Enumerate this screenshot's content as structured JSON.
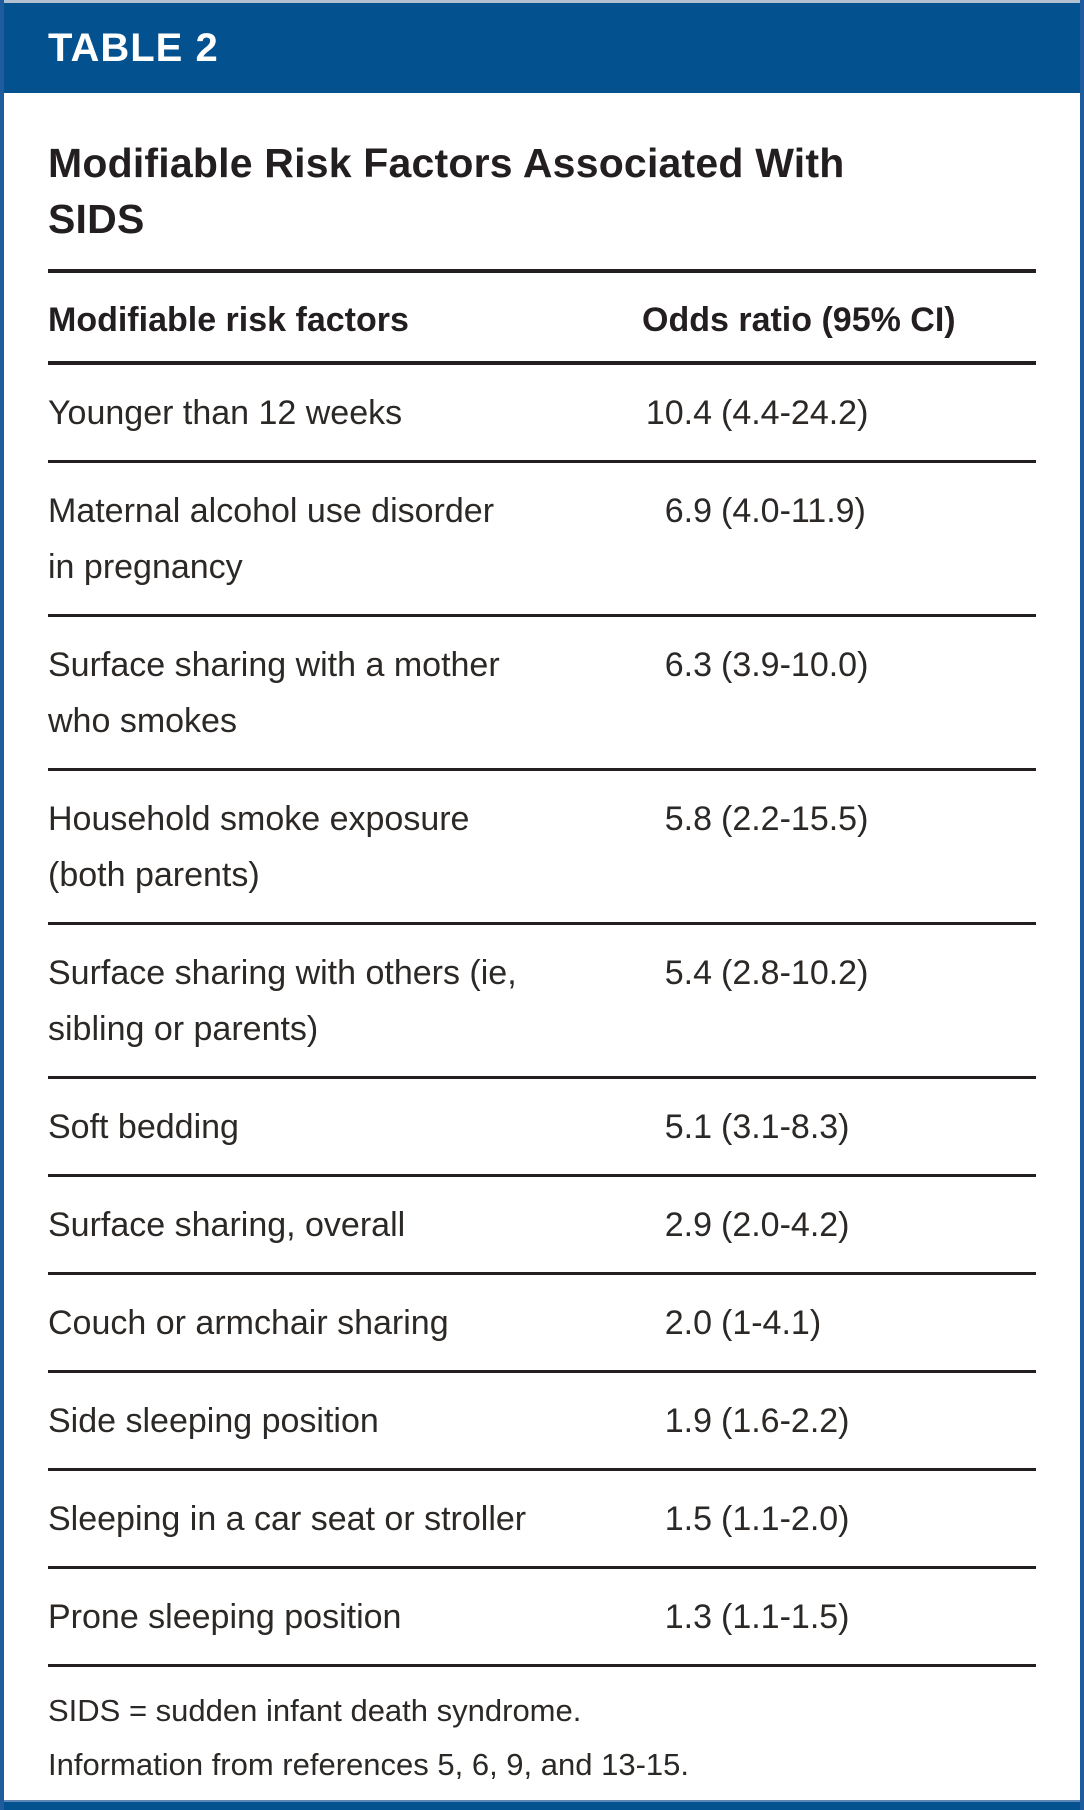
{
  "band": {
    "label": "TABLE 2"
  },
  "title": "Modifiable Risk Factors Associated With\nSIDS",
  "columns": {
    "factor": "Modifiable risk factors",
    "odds": "Odds ratio (95% CI)"
  },
  "rows": [
    {
      "factor": "Younger than 12 weeks",
      "odds": "10.4",
      "ci": "(4.4-24.2)"
    },
    {
      "factor": "Maternal alcohol use disorder\nin pregnancy",
      "odds": "6.9",
      "ci": "(4.0-11.9)"
    },
    {
      "factor": "Surface sharing with a mother\nwho smokes",
      "odds": "6.3",
      "ci": "(3.9-10.0)"
    },
    {
      "factor": "Household smoke exposure\n(both parents)",
      "odds": "5.8",
      "ci": "(2.2-15.5)"
    },
    {
      "factor": "Surface sharing with others (ie,\nsibling or parents)",
      "odds": "5.4",
      "ci": "(2.8-10.2)"
    },
    {
      "factor": "Soft bedding",
      "odds": "5.1",
      "ci": "(3.1-8.3)"
    },
    {
      "factor": "Surface sharing, overall",
      "odds": "2.9",
      "ci": "(2.0-4.2)"
    },
    {
      "factor": "Couch or armchair sharing",
      "odds": "2.0",
      "ci": "(1-4.1)"
    },
    {
      "factor": "Side sleeping position",
      "odds": "1.9",
      "ci": "(1.6-2.2)"
    },
    {
      "factor": "Sleeping in a car seat or stroller",
      "odds": "1.5",
      "ci": "(1.1-2.0)"
    },
    {
      "factor": "Prone sleeping position",
      "odds": "1.3",
      "ci": "(1.1-1.5)"
    }
  ],
  "footnotes": [
    "SIDS = sudden infant death syndrome.",
    "Information from references 5, 6, 9, and 13-15."
  ],
  "colors": {
    "band_blue": "#04518f",
    "border_blue": "#1f5c9e",
    "rule_dark": "#231f20",
    "text_dark": "#2b2826"
  }
}
